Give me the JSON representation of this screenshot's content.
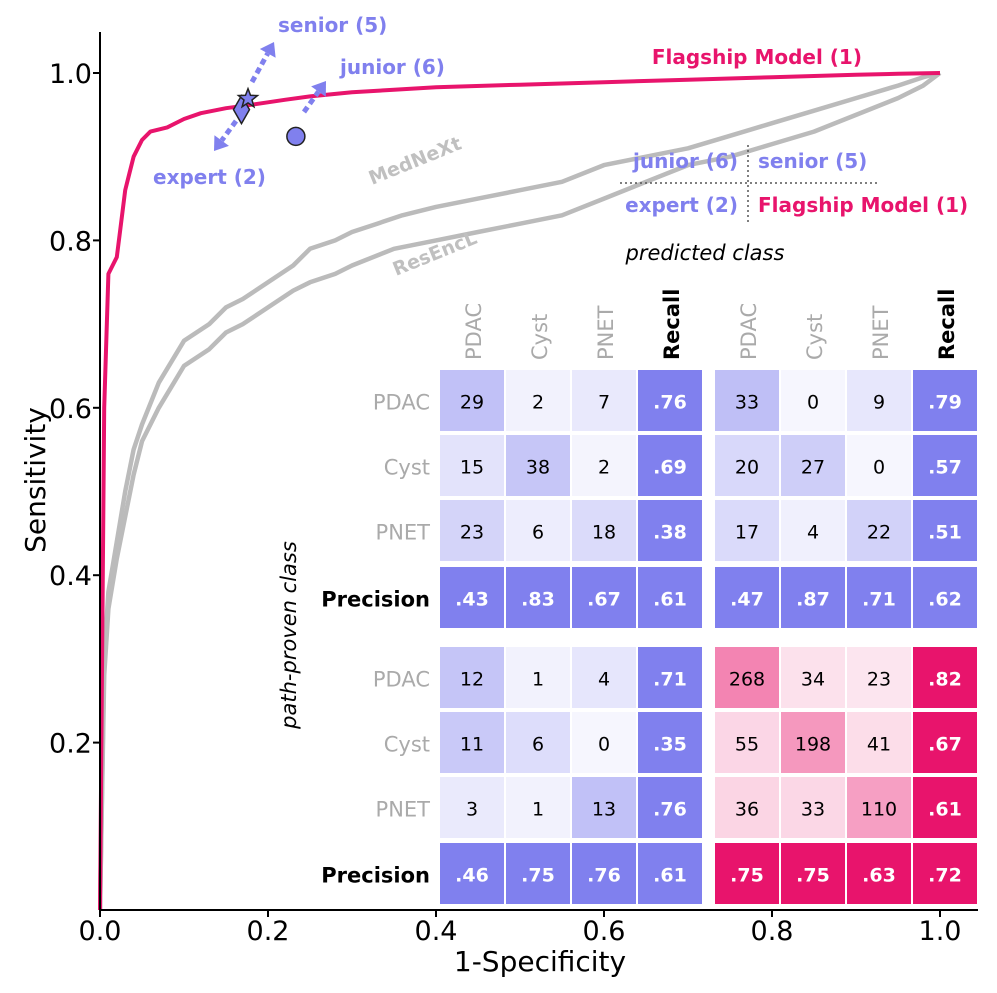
{
  "chart_data": {
    "type": "line",
    "title": "",
    "xlabel": "1-Specificity",
    "ylabel": "Sensitivity",
    "xlim": [
      0,
      1.05
    ],
    "ylim": [
      0,
      1.05
    ],
    "x_ticks": [
      "0.0",
      "0.2",
      "0.4",
      "0.6",
      "0.8",
      "1.0"
    ],
    "y_ticks": [
      "0.2",
      "0.4",
      "0.6",
      "0.8",
      "1.0"
    ],
    "series": [
      {
        "name": "Flagship Model (1)",
        "color": "#e8146c",
        "x": [
          0,
          0.005,
          0.01,
          0.02,
          0.025,
          0.03,
          0.035,
          0.04,
          0.05,
          0.06,
          0.08,
          0.1,
          0.12,
          0.15,
          0.18,
          0.2,
          0.22,
          0.25,
          0.3,
          0.35,
          0.4,
          0.5,
          0.6,
          0.7,
          0.8,
          0.9,
          0.95,
          1.0
        ],
        "y": [
          0,
          0.6,
          0.76,
          0.78,
          0.82,
          0.86,
          0.88,
          0.9,
          0.92,
          0.93,
          0.935,
          0.945,
          0.952,
          0.958,
          0.962,
          0.965,
          0.968,
          0.972,
          0.977,
          0.98,
          0.983,
          0.986,
          0.989,
          0.992,
          0.995,
          0.998,
          0.999,
          1.0
        ]
      },
      {
        "name": "MedNeXt",
        "color": "#bbbbbb",
        "x": [
          0,
          0.005,
          0.01,
          0.02,
          0.03,
          0.04,
          0.05,
          0.07,
          0.1,
          0.13,
          0.15,
          0.17,
          0.2,
          0.23,
          0.25,
          0.28,
          0.3,
          0.33,
          0.36,
          0.4,
          0.45,
          0.5,
          0.55,
          0.6,
          0.65,
          0.7,
          0.75,
          0.8,
          0.85,
          0.9,
          0.95,
          0.98,
          1.0
        ],
        "y": [
          0,
          0.3,
          0.38,
          0.44,
          0.5,
          0.55,
          0.58,
          0.63,
          0.68,
          0.7,
          0.72,
          0.73,
          0.75,
          0.77,
          0.79,
          0.8,
          0.81,
          0.82,
          0.83,
          0.84,
          0.85,
          0.86,
          0.87,
          0.89,
          0.9,
          0.91,
          0.925,
          0.94,
          0.955,
          0.97,
          0.985,
          0.995,
          1.0
        ]
      },
      {
        "name": "ResEncL",
        "color": "#bbbbbb",
        "x": [
          0,
          0.005,
          0.01,
          0.02,
          0.03,
          0.04,
          0.05,
          0.07,
          0.1,
          0.13,
          0.15,
          0.17,
          0.2,
          0.23,
          0.25,
          0.28,
          0.3,
          0.35,
          0.4,
          0.45,
          0.5,
          0.55,
          0.6,
          0.65,
          0.7,
          0.75,
          0.8,
          0.85,
          0.9,
          0.95,
          0.98,
          1.0
        ],
        "y": [
          0,
          0.28,
          0.36,
          0.42,
          0.47,
          0.52,
          0.56,
          0.6,
          0.65,
          0.67,
          0.69,
          0.7,
          0.72,
          0.74,
          0.75,
          0.76,
          0.77,
          0.79,
          0.8,
          0.81,
          0.82,
          0.83,
          0.85,
          0.87,
          0.89,
          0.9,
          0.915,
          0.93,
          0.95,
          0.97,
          0.985,
          1.0
        ]
      }
    ],
    "curve_labels": [
      "MedNeXt",
      "ResEncL"
    ],
    "flagship_label": "Flagship Model (1)",
    "readers": [
      {
        "name": "senior (5)",
        "marker": "star",
        "x": 0.175,
        "y": 0.98
      },
      {
        "name": "junior (6)",
        "marker": "circle",
        "x": 0.232,
        "y": 0.935
      },
      {
        "name": "expert (2)",
        "marker": "diamond",
        "x": 0.172,
        "y": 0.967
      }
    ],
    "reader_color": "#8080ee",
    "flagship_color": "#e8146c",
    "legend": {
      "top_left": "junior (6)",
      "top_right": "senior (5)",
      "bottom_left": "expert (2)",
      "bottom_right": "Flagship Model (1)"
    },
    "confusion": {
      "predicted_label": "predicted class",
      "actual_label": "path-proven class",
      "col_labels": [
        "PDAC",
        "Cyst",
        "PNET",
        "Recall"
      ],
      "row_labels": [
        "PDAC",
        "Cyst",
        "PNET",
        "Precision"
      ],
      "matrices": [
        {
          "name": "junior (6)",
          "color": "reader",
          "rows": [
            [
              "29",
              "2",
              "7",
              ".76"
            ],
            [
              "15",
              "38",
              "2",
              ".69"
            ],
            [
              "23",
              "6",
              "18",
              ".38"
            ],
            [
              ".43",
              ".83",
              ".67",
              ".61"
            ]
          ]
        },
        {
          "name": "senior (5)",
          "color": "reader",
          "rows": [
            [
              "33",
              "0",
              "9",
              ".79"
            ],
            [
              "20",
              "27",
              "0",
              ".57"
            ],
            [
              "17",
              "4",
              "22",
              ".51"
            ],
            [
              ".47",
              ".87",
              ".71",
              ".62"
            ]
          ]
        },
        {
          "name": "expert (2)",
          "color": "reader",
          "rows": [
            [
              "12",
              "1",
              "4",
              ".71"
            ],
            [
              "11",
              "6",
              "0",
              ".35"
            ],
            [
              "3",
              "1",
              "13",
              ".76"
            ],
            [
              ".46",
              ".75",
              ".76",
              ".61"
            ]
          ]
        },
        {
          "name": "Flagship Model (1)",
          "color": "flagship",
          "rows": [
            [
              "268",
              "34",
              "23",
              ".82"
            ],
            [
              "55",
              "198",
              "41",
              ".67"
            ],
            [
              "36",
              "33",
              "110",
              ".61"
            ],
            [
              ".75",
              ".75",
              ".63",
              ".72"
            ]
          ]
        }
      ]
    }
  }
}
